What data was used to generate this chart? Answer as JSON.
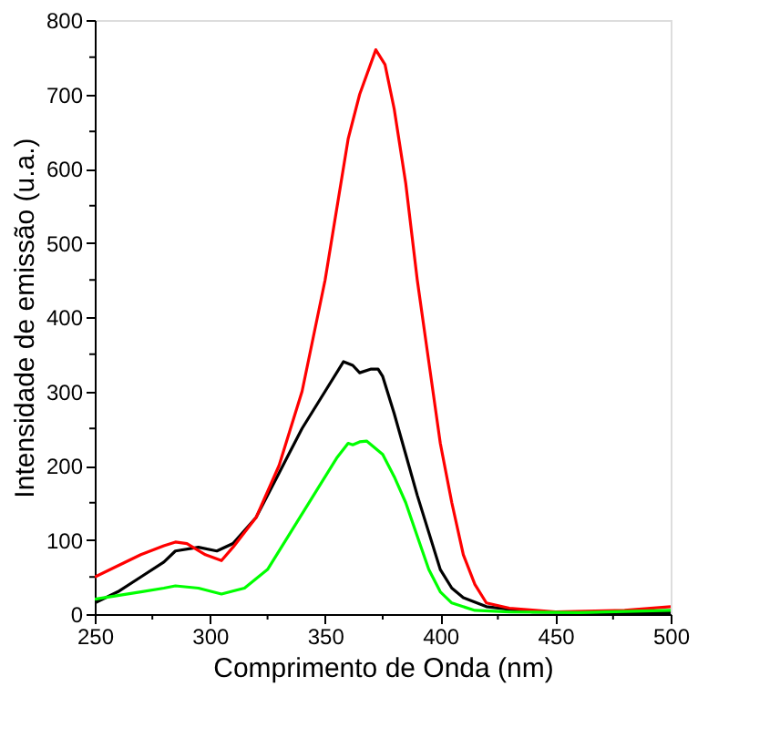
{
  "chart_data": {
    "type": "line",
    "xlabel": "Comprimento de Onda (nm)",
    "ylabel": "Intensidade de emissão (u.a.)",
    "xlim": [
      250,
      500
    ],
    "xticks": [
      250,
      300,
      350,
      400,
      450,
      500
    ],
    "ylim": [
      0,
      800
    ],
    "yticks": [
      0,
      100,
      200,
      300,
      400,
      500,
      600,
      700,
      800
    ],
    "grid": false,
    "legend": false,
    "marker": "none",
    "line_style": "solid",
    "series": [
      {
        "color": "#000000",
        "x": [
          250,
          260,
          270,
          280,
          285,
          295,
          303,
          310,
          320,
          330,
          340,
          350,
          358,
          362,
          365,
          370,
          373,
          375,
          380,
          385,
          390,
          395,
          400,
          405,
          410,
          420,
          440,
          470,
          500
        ],
        "values": [
          15,
          30,
          50,
          70,
          85,
          90,
          85,
          95,
          130,
          190,
          250,
          300,
          340,
          335,
          325,
          330,
          330,
          320,
          270,
          215,
          160,
          110,
          60,
          35,
          22,
          10,
          3,
          2,
          2
        ]
      },
      {
        "color": "#ff0000",
        "x": [
          250,
          260,
          270,
          280,
          285,
          290,
          298,
          305,
          310,
          320,
          330,
          340,
          350,
          360,
          365,
          372,
          376,
          380,
          385,
          390,
          395,
          400,
          405,
          410,
          415,
          420,
          430,
          450,
          480,
          500
        ],
        "values": [
          50,
          65,
          80,
          92,
          97,
          95,
          80,
          72,
          90,
          130,
          200,
          300,
          450,
          640,
          700,
          760,
          740,
          680,
          580,
          450,
          340,
          230,
          150,
          80,
          40,
          15,
          8,
          3,
          5,
          10
        ]
      },
      {
        "color": "#00ff00",
        "x": [
          250,
          260,
          270,
          280,
          285,
          295,
          305,
          315,
          325,
          335,
          345,
          355,
          360,
          362,
          365,
          368,
          375,
          380,
          385,
          390,
          395,
          400,
          405,
          415,
          430,
          460,
          500
        ],
        "values": [
          20,
          25,
          30,
          35,
          38,
          35,
          27,
          35,
          60,
          110,
          160,
          210,
          230,
          228,
          232,
          233,
          215,
          185,
          150,
          105,
          60,
          30,
          15,
          5,
          3,
          2,
          5
        ]
      }
    ]
  }
}
